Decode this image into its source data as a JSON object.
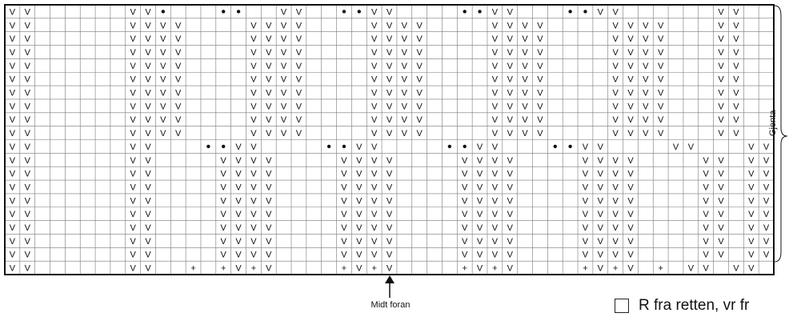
{
  "pattern": {
    "rows": [
      "VV      VV.   ..  VV  ..VV    ..VV   ..VV      VV",
      "VV      VVVV    VVVV    VVVV    VVVV    VVVV   VV",
      "VV      VVVV    VVVV    VVVV    VVVV    VVVV   VV",
      "VV      VVVV    VVVV    VVVV    VVVV    VVVV   VV",
      "VV      VVVV    VVVV    VVVV    VVVV    VVVV   VV",
      "VV      VVVV    VVVV    VVVV    VVVV    VVVV   VV",
      "VV      VVVV    VVVV    VVVV    VVVV    VVVV   VV",
      "VV      VVVV    VVVV    VVVV    VVVV    VVVV   VV",
      "VV      VVVV    VVVV    VVVV    VVVV    VVVV   VV",
      "VV      VVVV    VVVV    VVVV    VVVV    VVVV   VV",
      "VV      VV   ..VV    ..VV    ..VV   ..VV    VV   VV",
      "VV      VV    VVVV    VVVV    VVVV    VVVV    VV VV",
      "VV      VV    VVVV    VVVV    VVVV    VVVV    VV VV",
      "VV      VV    VVVV    VVVV    VVVV    VVVV    VV VV",
      "VV      VV    VVVV    VVVV    VVVV    VVVV    VV VV",
      "VV      VV    VVVV    VVVV    VVVV    VVVV    VV VV",
      "VV      VV    VVVV    VVVV    VVVV    VVVV    VV VV",
      "VV      VV    VVVV    VVVV    VVVV    VVVV    VV VV",
      "VV      VV    VVVV    VVVV    VVVV    VVVV    VV VV",
      "VV      VV  + +V+V    +V+V    +V+V    +V+V + VV VV"
    ]
  },
  "labels": {
    "center_front": "Midt foran",
    "repeat": "Gjenta",
    "legend_text": "R fra retten, vr fr"
  },
  "colors": {
    "grid": "#777777",
    "border": "#111111",
    "symbol": "#111111"
  }
}
